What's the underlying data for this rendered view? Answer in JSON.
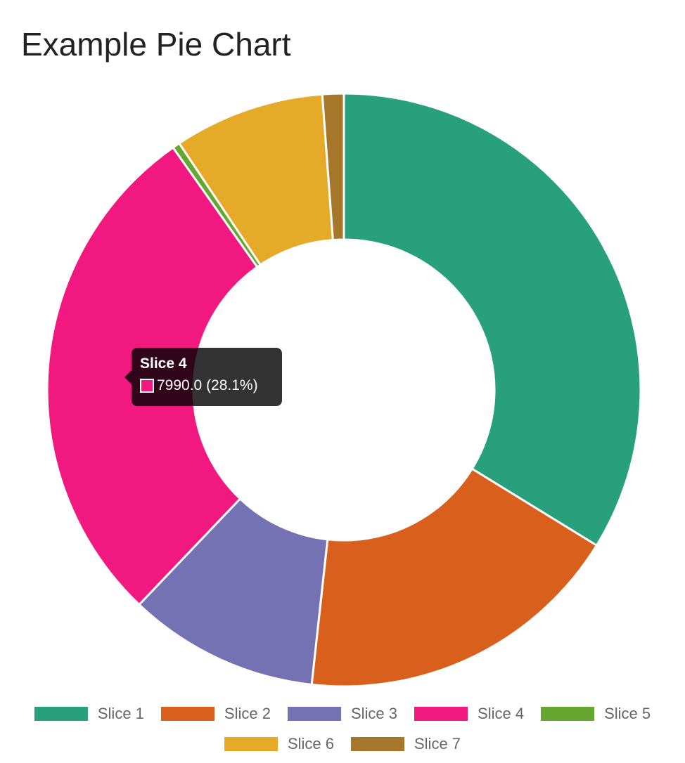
{
  "chart_data": {
    "type": "doughnut",
    "title": "Example Pie Chart",
    "categories": [
      "Slice 1",
      "Slice 2",
      "Slice 3",
      "Slice 4",
      "Slice 5",
      "Slice 6",
      "Slice 7"
    ],
    "values": [
      9600,
      5100,
      2950,
      7990,
      115,
      2330,
      330
    ],
    "colors": [
      "#27a07b",
      "#d95f1c",
      "#7572b4",
      "#f1187f",
      "#66a732",
      "#e5ab28",
      "#a6772a"
    ],
    "legend_position": "bottom",
    "tooltip": {
      "title": "Slice 4",
      "value_text": "7990.0 (28.1%)",
      "color": "#f1187f"
    }
  }
}
